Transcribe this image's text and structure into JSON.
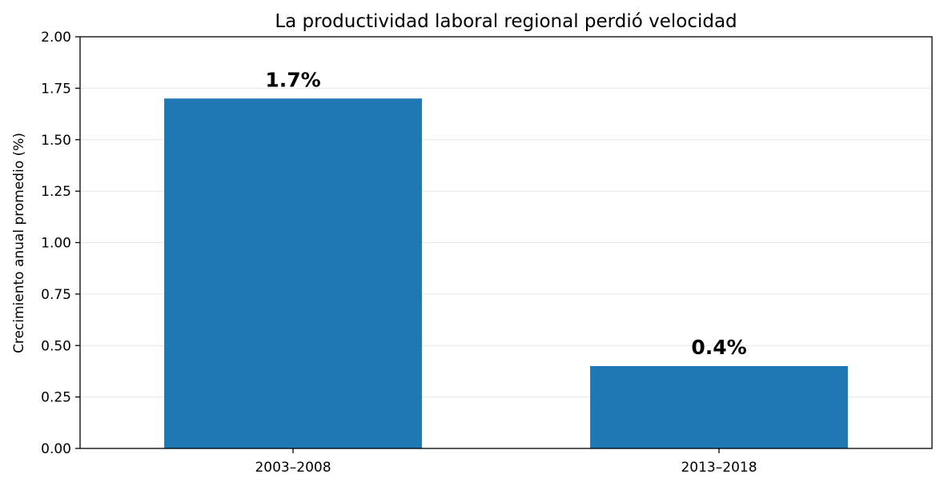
{
  "chart_data": {
    "type": "bar",
    "title": "La productividad laboral regional perdió velocidad",
    "xlabel": "",
    "ylabel": "Crecimiento anual promedio (%)",
    "categories": [
      "2003–2008",
      "2013–2018"
    ],
    "values": [
      1.7,
      0.4
    ],
    "data_labels": [
      "1.7%",
      "0.4%"
    ],
    "ylim": [
      0,
      2
    ],
    "yticks": [
      "0.00",
      "0.25",
      "0.50",
      "0.75",
      "1.00",
      "1.25",
      "1.50",
      "1.75",
      "2.00"
    ],
    "ytick_values": [
      0,
      0.25,
      0.5,
      0.75,
      1.0,
      1.25,
      1.5,
      1.75,
      2.0
    ],
    "grid": "horizontal",
    "legend": "none",
    "colors": {
      "bar": "#1f77b4",
      "grid": "#e6e6e6",
      "axis": "#000000"
    }
  }
}
